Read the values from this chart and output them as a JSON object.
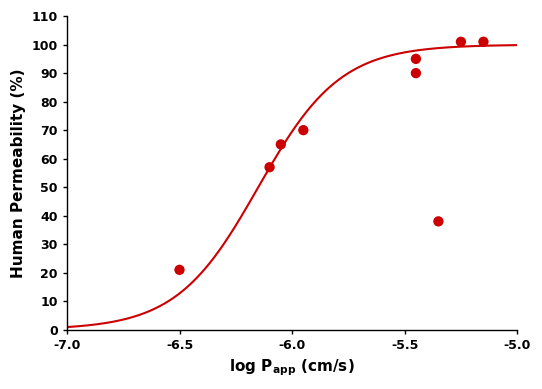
{
  "scatter_x": [
    -6.5,
    -6.1,
    -6.05,
    -5.95,
    -5.45,
    -5.45,
    -5.35,
    -5.25,
    -5.15
  ],
  "scatter_y": [
    21,
    57,
    65,
    70,
    95,
    90,
    38,
    101,
    101
  ],
  "curve_params": {
    "L": 100,
    "k": 5.5,
    "x0": -6.15
  },
  "xlim": [
    -7.0,
    -5.0
  ],
  "ylim": [
    0,
    110
  ],
  "xticks": [
    -7.0,
    -6.5,
    -6.0,
    -5.5,
    -5.0
  ],
  "yticks": [
    0,
    10,
    20,
    30,
    40,
    50,
    60,
    70,
    80,
    90,
    100,
    110
  ],
  "color": "#cc0000",
  "linewidth": 1.5,
  "markersize": 55,
  "background_color": "#ffffff",
  "tick_fontsize": 9,
  "label_fontsize": 11
}
